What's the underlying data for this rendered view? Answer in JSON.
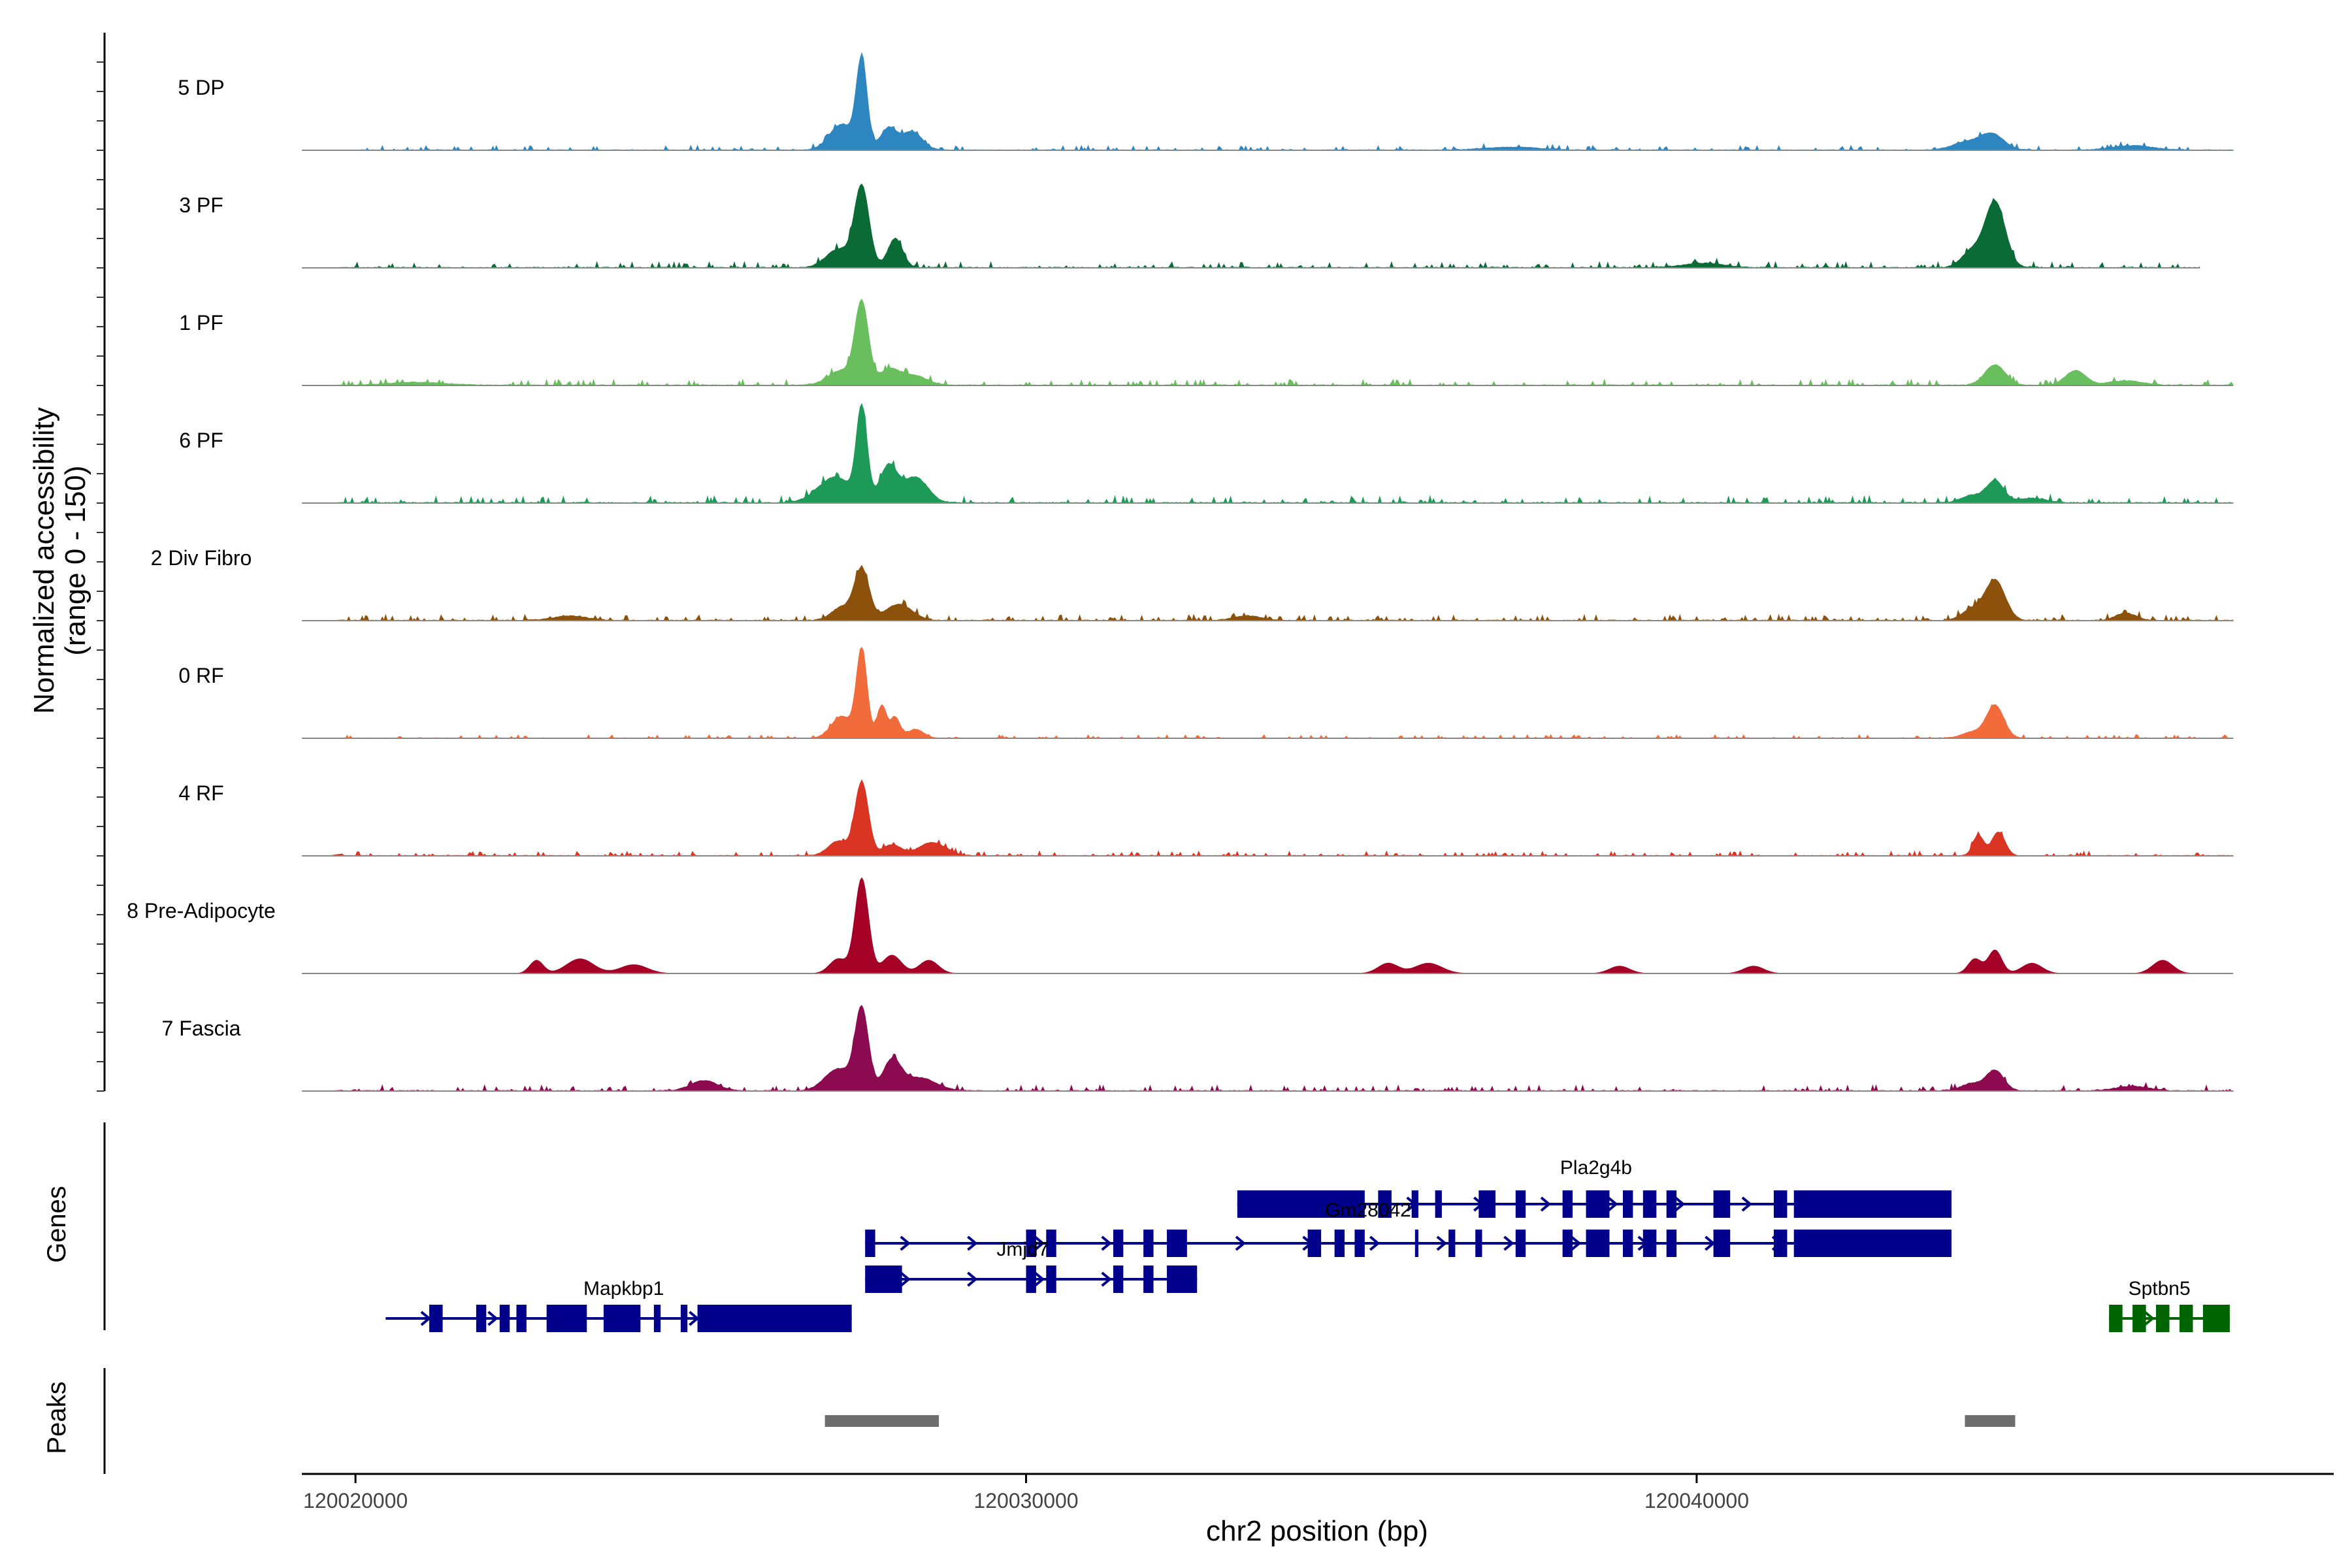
{
  "chart_data": {
    "type": "area",
    "title": "",
    "ylabel": "Normalized accessibility\n(range 0 - 150)",
    "ylim": [
      0,
      150
    ],
    "xlabel": "chr2 position (bp)",
    "xlim": [
      120019200,
      120049500
    ],
    "xticks": [
      {
        "value": 120020000,
        "label": "120020000"
      },
      {
        "value": 120030000,
        "label": "120030000"
      },
      {
        "value": 120040000,
        "label": "120040000"
      }
    ],
    "genes_panel_label": "Genes",
    "peaks_panel_label": "Peaks",
    "series": [
      {
        "name": "5 DP",
        "color": "#2E86C1",
        "end": 120048000,
        "noise": 4,
        "peaks": [
          [
            120027550,
            120,
            80
          ],
          [
            120027250,
            35,
            180
          ],
          [
            120027950,
            30,
            120
          ],
          [
            120028300,
            25,
            150
          ],
          [
            120037250,
            4,
            400
          ],
          [
            120044400,
            22,
            180
          ],
          [
            120044000,
            10,
            200
          ],
          [
            120046500,
            6,
            300
          ]
        ]
      },
      {
        "name": "3 PF",
        "color": "#0B6B36",
        "end": 120047500,
        "noise": 5,
        "peaks": [
          [
            120027550,
            110,
            110
          ],
          [
            120027200,
            25,
            180
          ],
          [
            120028050,
            40,
            110
          ],
          [
            120044450,
            90,
            150
          ],
          [
            120044100,
            22,
            150
          ],
          [
            120040100,
            6,
            300
          ]
        ]
      },
      {
        "name": "1 PF",
        "color": "#69BF5E",
        "end": 120048000,
        "noise": 5,
        "peaks": [
          [
            120027550,
            110,
            100
          ],
          [
            120027250,
            20,
            200
          ],
          [
            120027950,
            20,
            140
          ],
          [
            120028300,
            14,
            200
          ],
          [
            120044450,
            28,
            150
          ],
          [
            120045650,
            20,
            150
          ],
          [
            120046400,
            6,
            250
          ],
          [
            120020900,
            4,
            400
          ]
        ]
      },
      {
        "name": "6 PF",
        "color": "#1E9A58",
        "end": 120048000,
        "noise": 6,
        "peaks": [
          [
            120027550,
            125,
            80
          ],
          [
            120027150,
            35,
            250
          ],
          [
            120027950,
            50,
            130
          ],
          [
            120028350,
            35,
            180
          ],
          [
            120044450,
            30,
            130
          ],
          [
            120044100,
            10,
            150
          ],
          [
            120045000,
            6,
            200
          ]
        ]
      },
      {
        "name": "2 Div Fibro",
        "color": "#8C510A",
        "end": 120048000,
        "noise": 5,
        "peaks": [
          [
            120027550,
            70,
            110
          ],
          [
            120027250,
            18,
            150
          ],
          [
            120028100,
            22,
            200
          ],
          [
            120044450,
            55,
            150
          ],
          [
            120044100,
            14,
            150
          ],
          [
            120046400,
            10,
            150
          ],
          [
            120023200,
            6,
            250
          ],
          [
            120033300,
            6,
            200
          ]
        ]
      },
      {
        "name": "0 RF",
        "color": "#F26B3A",
        "end": 120048000,
        "noise": 3,
        "peaks": [
          [
            120027550,
            120,
            80
          ],
          [
            120027250,
            30,
            150
          ],
          [
            120027850,
            45,
            70
          ],
          [
            120028050,
            28,
            70
          ],
          [
            120028350,
            12,
            120
          ],
          [
            120044450,
            45,
            130
          ],
          [
            120044100,
            8,
            150
          ]
        ]
      },
      {
        "name": "4 RF",
        "color": "#DA3522",
        "end": 120048000,
        "noise": 4,
        "peaks": [
          [
            120027550,
            100,
            100
          ],
          [
            120027200,
            20,
            150
          ],
          [
            120028000,
            15,
            140
          ],
          [
            120028600,
            18,
            200
          ],
          [
            120044200,
            28,
            80
          ],
          [
            120044500,
            32,
            100
          ]
        ]
      },
      {
        "name": "8 Pre-Adipocyte",
        "color": "#A50026",
        "end": 120048000,
        "noise": 0,
        "peaks": [
          [
            120027550,
            130,
            100
          ],
          [
            120027200,
            20,
            130
          ],
          [
            120028000,
            25,
            140
          ],
          [
            120028550,
            18,
            140
          ],
          [
            120044450,
            32,
            100
          ],
          [
            120044150,
            20,
            100
          ],
          [
            120045000,
            14,
            150
          ],
          [
            120046950,
            18,
            150
          ],
          [
            120022700,
            18,
            100
          ],
          [
            120023350,
            20,
            200
          ],
          [
            120024150,
            12,
            200
          ],
          [
            120035400,
            14,
            150
          ],
          [
            120036000,
            14,
            200
          ],
          [
            120038850,
            10,
            150
          ],
          [
            120040850,
            10,
            150
          ]
        ]
      },
      {
        "name": "7 Fascia",
        "color": "#8B0A50",
        "end": 120048000,
        "noise": 5,
        "peaks": [
          [
            120027550,
            110,
            100
          ],
          [
            120027200,
            30,
            200
          ],
          [
            120028000,
            40,
            130
          ],
          [
            120028400,
            18,
            250
          ],
          [
            120025200,
            14,
            200
          ],
          [
            120044450,
            28,
            130
          ],
          [
            120044100,
            10,
            150
          ],
          [
            120046500,
            6,
            250
          ]
        ]
      }
    ],
    "peak_regions": [
      [
        120027000,
        120028700
      ],
      [
        120044000,
        120044750
      ]
    ],
    "transcripts": [
      {
        "gene": "Mapkbp1",
        "label": "Mapkbp1",
        "color": "#00008B",
        "row": 4,
        "start": 120020450,
        "end": 120027400,
        "exons": [
          [
            120021100,
            120021300
          ],
          [
            120021800,
            120021950
          ],
          [
            120022150,
            120022300
          ],
          [
            120022400,
            120022550
          ],
          [
            120022850,
            120023450
          ],
          [
            120023700,
            120024250
          ],
          [
            120024450,
            120024550
          ],
          [
            120024850,
            120024950
          ],
          [
            120025100,
            120027400
          ]
        ]
      },
      {
        "gene": "Jmjd7",
        "label": "Jmjd7",
        "color": "#00008B",
        "row": 3,
        "start": 120027600,
        "end": 120032550,
        "exons": [
          [
            120027600,
            120028150
          ],
          [
            120030000,
            120030150
          ],
          [
            120030300,
            120030450
          ],
          [
            120031300,
            120031450
          ],
          [
            120031750,
            120031900
          ],
          [
            120032100,
            120032550
          ]
        ]
      },
      {
        "gene": "Jmjd7",
        "label": "",
        "color": "#00008B",
        "row": 2,
        "start": 120027600,
        "end": 120043800,
        "exons": [
          [
            120027600,
            120027750
          ],
          [
            120030000,
            120030150
          ],
          [
            120030300,
            120030450
          ],
          [
            120031300,
            120031450
          ],
          [
            120031750,
            120031900
          ],
          [
            120032100,
            120032400
          ],
          [
            120034200,
            120034400
          ],
          [
            120034600,
            120034750
          ],
          [
            120034900,
            120035050
          ],
          [
            120035800,
            120035850
          ],
          [
            120036300,
            120036400
          ],
          [
            120036700,
            120036800
          ],
          [
            120037300,
            120037450
          ],
          [
            120038000,
            120038150
          ],
          [
            120038350,
            120038700
          ],
          [
            120038900,
            120039050
          ],
          [
            120039200,
            120039400
          ],
          [
            120039550,
            120039700
          ],
          [
            120040250,
            120040500
          ],
          [
            120041150,
            120041350
          ],
          [
            120041450,
            120043800
          ]
        ]
      },
      {
        "gene": "Gm28042",
        "label": "Gm28042",
        "color": "#00008B",
        "row": 1,
        "start": 120033150,
        "end": 120043800,
        "exons": [
          [
            120033150,
            120035050
          ],
          [
            120035250,
            120035450
          ],
          [
            120035750,
            120035850
          ],
          [
            120036100,
            120036200
          ],
          [
            120036750,
            120037000
          ],
          [
            120037300,
            120037450
          ],
          [
            120038000,
            120038150
          ],
          [
            120038350,
            120038700
          ],
          [
            120038900,
            120039050
          ],
          [
            120039200,
            120039400
          ],
          [
            120039550,
            120039700
          ],
          [
            120040250,
            120040500
          ],
          [
            120041150,
            120041350
          ],
          [
            120041450,
            120043800
          ]
        ]
      },
      {
        "gene": "Sptbn5",
        "label": "Sptbn5",
        "color": "#006400",
        "row": 4,
        "start": 120046150,
        "end": 120047950,
        "exons": [
          [
            120046150,
            120046350
          ],
          [
            120046500,
            120046700
          ],
          [
            120046850,
            120047050
          ],
          [
            120047200,
            120047400
          ],
          [
            120047550,
            120047950
          ]
        ]
      }
    ],
    "gene_labels": [
      {
        "gene": "Pla2g4b",
        "label": "Pla2g4b",
        "at": 120038500,
        "row": 0
      },
      {
        "gene": "Gm28042",
        "label": "Gm28042",
        "at": 120035100,
        "row": 1.5
      },
      {
        "gene": "Jmjd7",
        "label": "Jmjd7",
        "at": 120029950,
        "row": 2.5
      },
      {
        "gene": "Mapkbp1",
        "label": "Mapkbp1",
        "at": 120024000,
        "row": 3.5
      },
      {
        "gene": "Sptbn5",
        "label": "Sptbn5",
        "at": 120046900,
        "row": 3.5
      }
    ]
  }
}
